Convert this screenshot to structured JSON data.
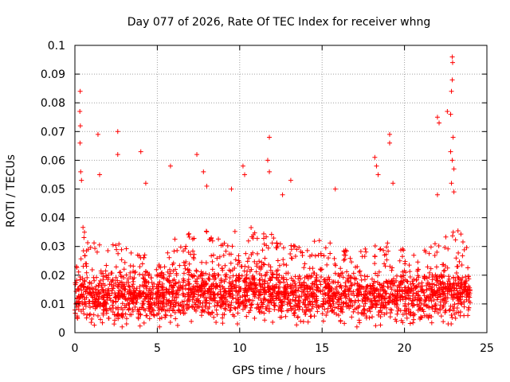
{
  "chart_data": {
    "type": "scatter",
    "title": "Day 077 of 2026, Rate Of TEC Index for receiver whng",
    "xlabel": "GPS time / hours",
    "ylabel": "ROTI / TECUs",
    "xlim": [
      0,
      25
    ],
    "ylim": [
      0,
      0.1
    ],
    "x_ticks": [
      "0",
      "5",
      "10",
      "15",
      "20",
      "25"
    ],
    "y_ticks": [
      "0",
      "0.01",
      "0.02",
      "0.03",
      "0.04",
      "0.05",
      "0.06",
      "0.07",
      "0.08",
      "0.09",
      "0.1"
    ],
    "x_tick_values": [
      0,
      5,
      10,
      15,
      20,
      25
    ],
    "y_tick_values": [
      0,
      0.01,
      0.02,
      0.03,
      0.04,
      0.05,
      0.06,
      0.07,
      0.08,
      0.09,
      0.1
    ],
    "grid": true,
    "marker": "+",
    "color": "#ff0000",
    "series": [
      {
        "profile": {
          "x": [
            0,
            0.3,
            1,
            2,
            3,
            4,
            5,
            6,
            7,
            8,
            9,
            10,
            11,
            12,
            13,
            14,
            15,
            16,
            17,
            18,
            19,
            20,
            21,
            22,
            22.9,
            23.5,
            24
          ],
          "base": [
            0.012,
            0.014,
            0.012,
            0.012,
            0.012,
            0.012,
            0.011,
            0.013,
            0.013,
            0.014,
            0.013,
            0.014,
            0.014,
            0.013,
            0.013,
            0.013,
            0.013,
            0.013,
            0.012,
            0.012,
            0.012,
            0.012,
            0.012,
            0.013,
            0.013,
            0.013,
            0.013
          ],
          "upper": [
            0.026,
            0.036,
            0.029,
            0.028,
            0.029,
            0.027,
            0.021,
            0.03,
            0.032,
            0.033,
            0.031,
            0.033,
            0.034,
            0.032,
            0.028,
            0.03,
            0.03,
            0.028,
            0.025,
            0.029,
            0.03,
            0.027,
            0.026,
            0.03,
            0.036,
            0.032,
            0.024
          ]
        },
        "peaks": [
          {
            "x": 0.32,
            "y": 0.084
          },
          {
            "x": 0.3,
            "y": 0.077
          },
          {
            "x": 0.33,
            "y": 0.072
          },
          {
            "x": 0.31,
            "y": 0.066
          },
          {
            "x": 0.35,
            "y": 0.056
          },
          {
            "x": 0.4,
            "y": 0.053
          },
          {
            "x": 1.4,
            "y": 0.069
          },
          {
            "x": 1.5,
            "y": 0.055
          },
          {
            "x": 2.6,
            "y": 0.07
          },
          {
            "x": 2.6,
            "y": 0.062
          },
          {
            "x": 4.0,
            "y": 0.063
          },
          {
            "x": 4.3,
            "y": 0.052
          },
          {
            "x": 5.8,
            "y": 0.058
          },
          {
            "x": 7.4,
            "y": 0.062
          },
          {
            "x": 7.8,
            "y": 0.056
          },
          {
            "x": 8.0,
            "y": 0.051
          },
          {
            "x": 9.5,
            "y": 0.05
          },
          {
            "x": 10.2,
            "y": 0.058
          },
          {
            "x": 10.3,
            "y": 0.055
          },
          {
            "x": 11.8,
            "y": 0.068
          },
          {
            "x": 11.7,
            "y": 0.06
          },
          {
            "x": 11.8,
            "y": 0.056
          },
          {
            "x": 12.6,
            "y": 0.048
          },
          {
            "x": 13.1,
            "y": 0.053
          },
          {
            "x": 15.8,
            "y": 0.05
          },
          {
            "x": 18.2,
            "y": 0.061
          },
          {
            "x": 18.3,
            "y": 0.058
          },
          {
            "x": 18.4,
            "y": 0.055
          },
          {
            "x": 19.1,
            "y": 0.069
          },
          {
            "x": 19.1,
            "y": 0.066
          },
          {
            "x": 19.3,
            "y": 0.052
          },
          {
            "x": 22.0,
            "y": 0.075
          },
          {
            "x": 22.1,
            "y": 0.073
          },
          {
            "x": 22.0,
            "y": 0.048
          },
          {
            "x": 22.6,
            "y": 0.077
          },
          {
            "x": 22.8,
            "y": 0.076
          },
          {
            "x": 22.9,
            "y": 0.096
          },
          {
            "x": 22.92,
            "y": 0.094
          },
          {
            "x": 22.9,
            "y": 0.088
          },
          {
            "x": 22.85,
            "y": 0.084
          },
          {
            "x": 22.95,
            "y": 0.068
          },
          {
            "x": 22.8,
            "y": 0.063
          },
          {
            "x": 22.9,
            "y": 0.06
          },
          {
            "x": 23.0,
            "y": 0.057
          },
          {
            "x": 22.85,
            "y": 0.052
          },
          {
            "x": 23.0,
            "y": 0.049
          }
        ]
      }
    ]
  }
}
